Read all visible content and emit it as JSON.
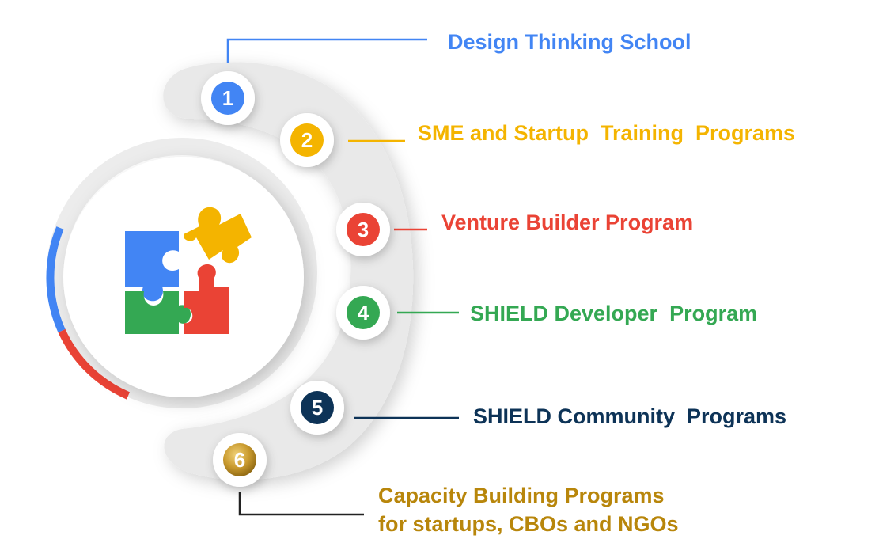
{
  "programs": [
    {
      "number": "1",
      "label": "Design Thinking School",
      "color": "#4285F4"
    },
    {
      "number": "2",
      "label": "SME and Startup  Training  Programs",
      "color": "#F4B400"
    },
    {
      "number": "3",
      "label": "Venture Builder Program",
      "color": "#EA4335"
    },
    {
      "number": "4",
      "label": "SHIELD Developer  Program",
      "color": "#34A853"
    },
    {
      "number": "5",
      "label": "SHIELD Community  Programs",
      "color": "#0D3357"
    },
    {
      "number": "6",
      "label_lines": [
        "Capacity Building Programs",
        "for startups, CBOs and NGOs"
      ],
      "color": "#B8860B"
    }
  ],
  "center_icon": "puzzle-pieces-icon",
  "puzzle_colors": {
    "blue": "#4285F4",
    "yellow": "#F4B400",
    "green": "#34A853",
    "red": "#EA4335"
  }
}
